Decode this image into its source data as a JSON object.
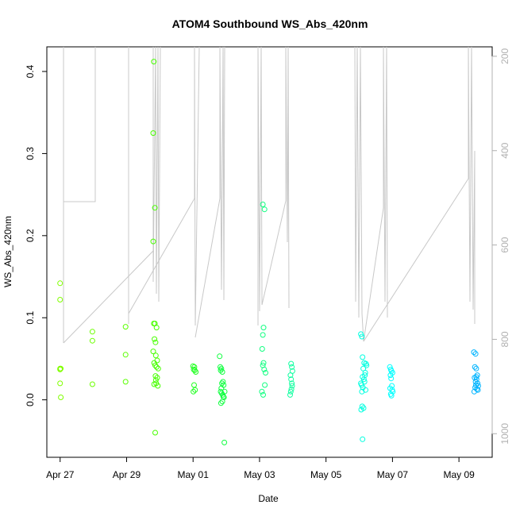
{
  "chart_data": {
    "type": "scatter",
    "title": "ATOM4 Southbound WS_Abs_420nm",
    "xlabel": "Date",
    "ylabel": "WS_Abs_420nm",
    "x_ticks": [
      "Apr 27",
      "Apr 29",
      "May 01",
      "May 03",
      "May 05",
      "May 07",
      "May 09"
    ],
    "x_tick_days": [
      0,
      2,
      4,
      6,
      8,
      10,
      12
    ],
    "y_ticks": [
      "0.0",
      "0.1",
      "0.2",
      "0.3",
      "0.4"
    ],
    "y_tick_values": [
      0.0,
      0.1,
      0.2,
      0.3,
      0.4
    ],
    "y_right_ticks": [
      "200",
      "400",
      "600",
      "800",
      "1000"
    ],
    "y_right_tick_values": [
      200,
      400,
      600,
      800,
      1000
    ],
    "xlim_days": [
      -0.4,
      13.0
    ],
    "ylim": [
      -0.07,
      0.43
    ],
    "y_right_lim": [
      1050,
      180
    ],
    "grid": false,
    "point_series": [
      {
        "color": "#80ff00",
        "x": [
          0.0,
          0.0,
          0.0,
          0.0,
          0.0,
          0.02,
          0.02
        ],
        "y": [
          0.142,
          0.122,
          0.038,
          0.037,
          0.02,
          0.003,
          0.038
        ]
      },
      {
        "color": "#6cff00",
        "x": [
          0.97,
          0.97,
          0.97
        ],
        "y": [
          0.083,
          0.072,
          0.019
        ]
      },
      {
        "color": "#5aff00",
        "x": [
          1.97,
          1.97,
          1.97
        ],
        "y": [
          0.089,
          0.055,
          0.022
        ]
      },
      {
        "color": "#48ff00",
        "x": [
          2.82,
          2.8,
          2.85,
          2.8,
          2.82,
          2.85,
          2.9,
          2.84,
          2.87,
          2.8,
          2.88,
          2.92,
          2.83,
          2.86,
          2.9,
          2.95,
          2.87,
          2.92,
          2.89,
          2.94,
          2.83,
          2.88,
          2.86
        ],
        "y": [
          0.412,
          0.325,
          0.234,
          0.193,
          0.093,
          0.093,
          0.088,
          0.074,
          0.07,
          0.059,
          0.054,
          0.048,
          0.045,
          0.042,
          0.04,
          0.038,
          0.029,
          0.027,
          0.02,
          0.017,
          0.019,
          0.024,
          -0.04
        ]
      },
      {
        "color": "#20ff20",
        "x": [
          4.0,
          4.02,
          4.05,
          4.08,
          4.03,
          4.06,
          4.01,
          4.04
        ],
        "y": [
          0.041,
          0.037,
          0.036,
          0.034,
          0.018,
          0.012,
          0.01,
          0.04
        ]
      },
      {
        "color": "#10ff40",
        "x": [
          4.8,
          4.82,
          4.85,
          4.83,
          4.88,
          4.9,
          4.87,
          4.92,
          4.85,
          4.83,
          4.95,
          4.86,
          4.89,
          4.91,
          4.93,
          4.84,
          4.88,
          4.94
        ],
        "y": [
          0.053,
          0.04,
          0.038,
          0.036,
          0.034,
          0.022,
          0.02,
          0.018,
          0.014,
          0.01,
          0.01,
          0.008,
          0.006,
          0.004,
          0.003,
          -0.004,
          -0.002,
          -0.052
        ]
      },
      {
        "color": "#10ff80",
        "x": [
          6.1,
          6.15,
          6.12,
          6.1,
          6.08,
          6.12,
          6.1,
          6.14,
          6.18,
          6.16,
          6.07,
          6.11
        ],
        "y": [
          0.238,
          0.232,
          0.088,
          0.079,
          0.062,
          0.045,
          0.042,
          0.037,
          0.033,
          0.018,
          0.01,
          0.006
        ]
      },
      {
        "color": "#10ffa0",
        "x": [
          6.95,
          6.97,
          6.99,
          6.93,
          6.95,
          6.97,
          6.98,
          6.96,
          6.94,
          6.92
        ],
        "y": [
          0.044,
          0.04,
          0.035,
          0.03,
          0.025,
          0.02,
          0.017,
          0.013,
          0.01,
          0.006
        ]
      },
      {
        "color": "#00ffe0",
        "x": [
          9.05,
          9.08,
          9.1,
          9.15,
          9.2,
          9.22,
          9.12,
          9.18,
          9.1,
          9.14,
          9.16,
          9.07,
          9.11,
          9.19,
          9.09,
          9.13,
          9.06,
          9.17,
          9.05,
          9.08,
          9.1
        ],
        "y": [
          0.08,
          0.077,
          0.052,
          0.045,
          0.044,
          0.042,
          0.038,
          0.033,
          0.028,
          0.025,
          0.022,
          0.018,
          0.015,
          0.012,
          -0.008,
          -0.01,
          -0.012,
          0.03,
          0.02,
          0.01,
          -0.048
        ]
      },
      {
        "color": "#00ffff",
        "x": [
          9.92,
          9.95,
          9.97,
          10.0,
          9.94,
          9.96,
          9.98,
          9.93,
          9.99,
          10.01,
          9.95,
          9.97
        ],
        "y": [
          0.04,
          0.037,
          0.035,
          0.033,
          0.03,
          0.026,
          0.017,
          0.014,
          0.012,
          0.01,
          0.007,
          0.005
        ]
      },
      {
        "color": "#00b4ff",
        "x": [
          12.45,
          12.5,
          12.48,
          12.52,
          12.55,
          12.47,
          12.53,
          12.5,
          12.56,
          12.51,
          12.58,
          12.49,
          12.54,
          12.57,
          12.46,
          12.52
        ],
        "y": [
          0.058,
          0.056,
          0.04,
          0.038,
          0.03,
          0.027,
          0.025,
          0.022,
          0.02,
          0.018,
          0.017,
          0.015,
          0.013,
          0.012,
          0.01,
          0.028
        ]
      }
    ]
  }
}
